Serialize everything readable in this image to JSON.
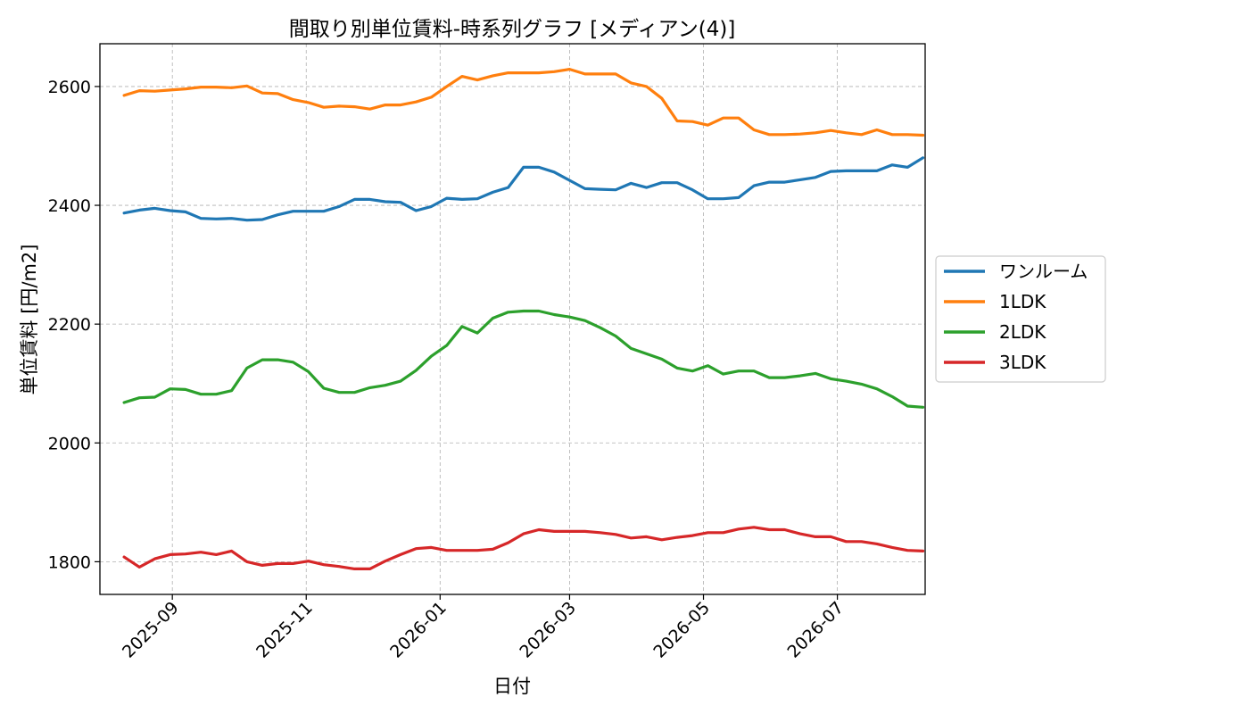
{
  "chart_data": {
    "type": "line",
    "title": "間取り別単位賃料-時系列グラフ [メディアン(4)]",
    "xlabel": "日付",
    "ylabel": "単位賃料 [円/m2]",
    "ylim": [
      1745,
      2672
    ],
    "xlim": [
      "2025-07-30",
      "2026-08-10"
    ],
    "yticks": [
      1800,
      2000,
      2200,
      2400,
      2600
    ],
    "xticks": [
      "2025-09",
      "2025-11",
      "2026-01",
      "2026-03",
      "2026-05",
      "2026-07"
    ],
    "grid": true,
    "legend_position": "right",
    "x": [
      "2025-08-10",
      "2025-08-17",
      "2025-08-24",
      "2025-08-31",
      "2025-09-07",
      "2025-09-14",
      "2025-09-21",
      "2025-09-28",
      "2025-10-05",
      "2025-10-12",
      "2025-10-19",
      "2025-10-26",
      "2025-11-02",
      "2025-11-09",
      "2025-11-16",
      "2025-11-23",
      "2025-11-30",
      "2025-12-07",
      "2025-12-14",
      "2025-12-21",
      "2025-12-28",
      "2026-01-04",
      "2026-01-11",
      "2026-01-18",
      "2026-01-25",
      "2026-02-01",
      "2026-02-08",
      "2026-02-15",
      "2026-02-22",
      "2026-03-01",
      "2026-03-08",
      "2026-03-15",
      "2026-03-22",
      "2026-03-29",
      "2026-04-05",
      "2026-04-12",
      "2026-04-19",
      "2026-04-26",
      "2026-05-03",
      "2026-05-10",
      "2026-05-17",
      "2026-05-24",
      "2026-05-31",
      "2026-06-07",
      "2026-06-14",
      "2026-06-21",
      "2026-06-28",
      "2026-07-05",
      "2026-07-12",
      "2026-07-19",
      "2026-07-26",
      "2026-08-02",
      "2026-08-09"
    ],
    "series": [
      {
        "name": "ワンルーム",
        "color": "#1f77b4",
        "values": [
          2387,
          2392,
          2395,
          2391,
          2389,
          2378,
          2377,
          2378,
          2375,
          2376,
          2384,
          2390,
          2390,
          2390,
          2398,
          2410,
          2410,
          2406,
          2405,
          2391,
          2398,
          2412,
          2410,
          2411,
          2422,
          2430,
          2464,
          2464,
          2456,
          2442,
          2428,
          2427,
          2426,
          2437,
          2430,
          2438,
          2438,
          2426,
          2411,
          2411,
          2413,
          2433,
          2439,
          2439,
          2443,
          2447,
          2457,
          2458,
          2458,
          2458,
          2468,
          2464,
          2480
        ]
      },
      {
        "name": "1LDK",
        "color": "#ff7f0e",
        "values": [
          2585,
          2593,
          2592,
          2594,
          2596,
          2599,
          2599,
          2598,
          2601,
          2589,
          2588,
          2578,
          2573,
          2565,
          2567,
          2566,
          2562,
          2569,
          2569,
          2574,
          2582,
          2600,
          2617,
          2611,
          2618,
          2623,
          2623,
          2623,
          2625,
          2629,
          2621,
          2621,
          2621,
          2606,
          2600,
          2580,
          2542,
          2541,
          2535,
          2547,
          2547,
          2527,
          2519,
          2519,
          2520,
          2522,
          2526,
          2522,
          2519,
          2527,
          2519,
          2519,
          2518
        ]
      },
      {
        "name": "2LDK",
        "color": "#2ca02c",
        "values": [
          2068,
          2076,
          2077,
          2091,
          2090,
          2082,
          2082,
          2088,
          2126,
          2140,
          2140,
          2136,
          2120,
          2092,
          2085,
          2085,
          2093,
          2097,
          2104,
          2122,
          2146,
          2164,
          2196,
          2185,
          2210,
          2220,
          2222,
          2222,
          2216,
          2212,
          2206,
          2194,
          2180,
          2159,
          2150,
          2141,
          2126,
          2121,
          2130,
          2116,
          2121,
          2121,
          2110,
          2110,
          2113,
          2117,
          2108,
          2104,
          2099,
          2091,
          2078,
          2062,
          2060
        ]
      },
      {
        "name": "3LDK",
        "color": "#d62728",
        "values": [
          1808,
          1791,
          1805,
          1812,
          1813,
          1816,
          1812,
          1818,
          1800,
          1794,
          1797,
          1797,
          1801,
          1795,
          1792,
          1788,
          1788,
          1801,
          1812,
          1822,
          1824,
          1819,
          1819,
          1819,
          1821,
          1832,
          1847,
          1854,
          1851,
          1851,
          1851,
          1849,
          1846,
          1840,
          1842,
          1837,
          1841,
          1844,
          1849,
          1849,
          1855,
          1858,
          1854,
          1854,
          1847,
          1842,
          1842,
          1834,
          1834,
          1830,
          1824,
          1819,
          1818
        ]
      }
    ]
  }
}
